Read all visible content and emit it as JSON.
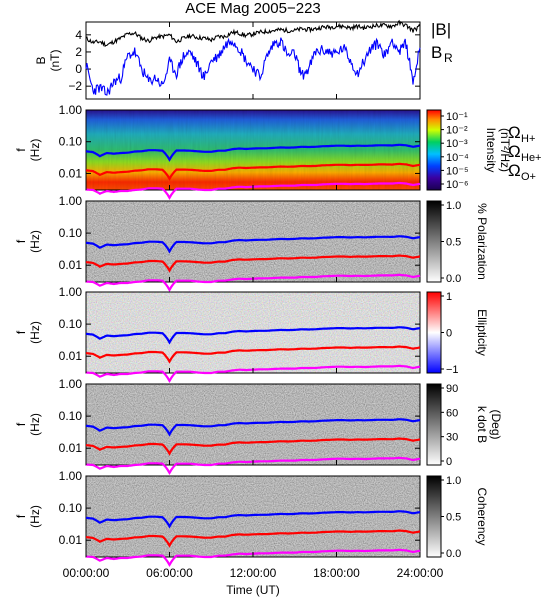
{
  "title": "ACE Mag 2005−223",
  "colors": {
    "babs": "#000000",
    "br": "#0000ff",
    "h": "#0000ff",
    "he": "#ff0000",
    "o": "#ff00ff"
  },
  "panels": {
    "b": {
      "ylabel_line1": "B",
      "ylabel_line2": "(nT)",
      "yticks": [
        "4",
        "2",
        "0",
        "−2"
      ],
      "legend_babs": "|B|",
      "legend_br": "B",
      "legend_br_sub": "R"
    },
    "freq": {
      "ylabel_line1": "f",
      "ylabel_line2": "(Hz)",
      "yticks": [
        "1.00",
        "0.10",
        "0.01"
      ]
    },
    "intensity": {
      "cb_line1": "Intensity",
      "cb_line2": "(nT²/Hz)",
      "cb_ticks": [
        "10⁻¹",
        "10⁻²",
        "10⁻³",
        "10⁻⁴",
        "10⁻⁵",
        "10⁻⁶"
      ]
    },
    "polarization": {
      "cb_label": "% Polarization",
      "cb_ticks": [
        "1.0",
        "0.5",
        "0.0"
      ]
    },
    "ellipticity": {
      "cb_label": "Ellipticity",
      "cb_ticks": [
        "1",
        "0",
        "−1"
      ]
    },
    "kdotb": {
      "cb_line1": "k dot B",
      "cb_line2": "(Deg)",
      "cb_ticks": [
        "90",
        "60",
        "30",
        "0"
      ]
    },
    "coherency": {
      "cb_label": "Coherency",
      "cb_ticks": [
        "1.0",
        "0.5",
        "0.0"
      ]
    }
  },
  "gyro_legend": [
    {
      "label": "Ω",
      "sub": "H+"
    },
    {
      "label": "Ω",
      "sub": "He+"
    },
    {
      "label": "Ω",
      "sub": "O+"
    }
  ],
  "x_axis": {
    "ticks": [
      "00:00:00",
      "06:00:00",
      "12:00:00",
      "18:00:00",
      "24:00:00"
    ],
    "label": "Time (UT)"
  },
  "chart_data": {
    "type": "line",
    "title": "ACE Mag 2005−223",
    "x_unit": "hours UT",
    "xlim": [
      0,
      24
    ],
    "b_panel": {
      "ylim": [
        -3.5,
        5.5
      ],
      "series": [
        {
          "name": "|B|",
          "x": [
            0,
            0.5,
            1,
            1.5,
            2,
            2.5,
            3,
            3.5,
            4,
            4.5,
            5,
            5.5,
            6,
            6.5,
            7,
            7.5,
            8,
            8.5,
            9,
            9.5,
            10,
            10.5,
            11,
            11.5,
            12,
            12.5,
            13,
            13.5,
            14,
            14.5,
            15,
            15.5,
            16,
            16.5,
            17,
            17.5,
            18,
            18.5,
            19,
            19.5,
            20,
            20.5,
            21,
            21.5,
            22,
            22.5,
            23,
            23.5,
            24
          ],
          "values": [
            3.6,
            3.1,
            3.2,
            2.8,
            3.2,
            3.6,
            4.1,
            4.2,
            3.6,
            3.3,
            3.7,
            3.8,
            4.0,
            3.2,
            3.6,
            3.9,
            3.7,
            3.6,
            3.4,
            3.8,
            3.8,
            4.3,
            4.2,
            3.9,
            4.1,
            4.3,
            4.4,
            4.5,
            4.6,
            4.5,
            4.5,
            4.7,
            4.6,
            4.7,
            4.9,
            4.9,
            5.0,
            5.0,
            4.8,
            5.0,
            4.8,
            5.0,
            5.1,
            5.1,
            5.0,
            5.4,
            5.1,
            4.5,
            5.0
          ]
        },
        {
          "name": "B",
          "x": [
            0,
            0.5,
            1,
            1.5,
            2,
            2.5,
            3,
            3.5,
            4,
            4.5,
            5,
            5.5,
            6,
            6.5,
            7,
            7.5,
            8,
            8.5,
            9,
            9.5,
            10,
            10.5,
            11,
            11.5,
            12,
            12.5,
            13,
            13.5,
            14,
            14.5,
            15,
            15.5,
            16,
            16.5,
            17,
            17.5,
            18,
            18.5,
            19,
            19.5,
            20,
            20.5,
            21,
            21.5,
            22,
            22.5,
            23,
            23.5,
            24
          ],
          "values": [
            0.5,
            -2.5,
            -2.2,
            -2.9,
            -1.5,
            -1.0,
            1.5,
            2.0,
            0.0,
            -1.5,
            -1.0,
            -2.0,
            0.8,
            -0.5,
            1.5,
            2.0,
            0.5,
            -1.0,
            1.0,
            1.5,
            2.8,
            3.5,
            2.5,
            1.0,
            0.2,
            -1.0,
            1.5,
            3.0,
            3.3,
            1.5,
            1.8,
            -0.8,
            0.0,
            2.0,
            2.2,
            2.0,
            1.8,
            2.5,
            1.0,
            -0.5,
            1.0,
            2.5,
            3.0,
            1.5,
            3.5,
            2.0,
            3.0,
            -1.5,
            2.5
          ]
        }
      ]
    },
    "spectrogram_panels": {
      "frequency_range_hz": [
        0.003,
        1.0
      ],
      "gyrofrequency_lines_hz": [
        {
          "name": "ΩH+",
          "x": [
            0,
            0.5,
            1,
            1.5,
            2,
            2.5,
            3,
            3.5,
            4,
            4.5,
            5,
            5.5,
            6,
            6.5,
            7,
            7.5,
            8,
            8.5,
            9,
            9.5,
            10,
            10.5,
            11,
            11.5,
            12,
            12.5,
            13,
            13.5,
            14,
            14.5,
            15,
            15.5,
            16,
            16.5,
            17,
            17.5,
            18,
            18.5,
            19,
            19.5,
            20,
            20.5,
            21,
            21.5,
            22,
            22.5,
            23,
            23.5,
            24
          ],
          "values": [
            0.05,
            0.047,
            0.035,
            0.044,
            0.042,
            0.044,
            0.045,
            0.049,
            0.05,
            0.054,
            0.054,
            0.052,
            0.027,
            0.053,
            0.053,
            0.052,
            0.05,
            0.048,
            0.048,
            0.052,
            0.052,
            0.058,
            0.061,
            0.059,
            0.061,
            0.062,
            0.062,
            0.064,
            0.066,
            0.065,
            0.066,
            0.069,
            0.068,
            0.069,
            0.072,
            0.073,
            0.075,
            0.075,
            0.073,
            0.075,
            0.074,
            0.075,
            0.077,
            0.077,
            0.076,
            0.08,
            0.077,
            0.069,
            0.075
          ]
        },
        {
          "name": "ΩHe+",
          "x": [
            0,
            0.5,
            1,
            1.5,
            2,
            2.5,
            3,
            3.5,
            4,
            4.5,
            5,
            5.5,
            6,
            6.5,
            7,
            7.5,
            8,
            8.5,
            9,
            9.5,
            10,
            10.5,
            11,
            11.5,
            12,
            12.5,
            13,
            13.5,
            14,
            14.5,
            15,
            15.5,
            16,
            16.5,
            17,
            17.5,
            18,
            18.5,
            19,
            19.5,
            20,
            20.5,
            21,
            21.5,
            22,
            22.5,
            23,
            23.5,
            24
          ],
          "values": [
            0.0125,
            0.0118,
            0.009,
            0.011,
            0.0105,
            0.011,
            0.0113,
            0.0122,
            0.0125,
            0.0135,
            0.0135,
            0.013,
            0.0068,
            0.0132,
            0.0132,
            0.013,
            0.0125,
            0.012,
            0.012,
            0.013,
            0.013,
            0.0145,
            0.0152,
            0.0148,
            0.0152,
            0.0155,
            0.0155,
            0.016,
            0.0165,
            0.0162,
            0.0165,
            0.0172,
            0.017,
            0.0172,
            0.018,
            0.0182,
            0.0187,
            0.0187,
            0.0182,
            0.0187,
            0.0185,
            0.0187,
            0.0192,
            0.0192,
            0.019,
            0.02,
            0.0192,
            0.0172,
            0.0187
          ]
        },
        {
          "name": "ΩO+",
          "x": [
            0,
            0.5,
            1,
            1.5,
            2,
            2.5,
            3,
            3.5,
            4,
            4.5,
            5,
            5.5,
            6,
            6.5,
            7,
            7.5,
            8,
            8.5,
            9,
            9.5,
            10,
            10.5,
            11,
            11.5,
            12,
            12.5,
            13,
            13.5,
            14,
            14.5,
            15,
            15.5,
            16,
            16.5,
            17,
            17.5,
            18,
            18.5,
            19,
            19.5,
            20,
            20.5,
            21,
            21.5,
            22,
            22.5,
            23,
            23.5,
            24
          ],
          "values": [
            0.0031,
            0.003,
            0.0023,
            0.0028,
            0.0026,
            0.0028,
            0.0028,
            0.003,
            0.0031,
            0.0034,
            0.0034,
            0.0033,
            0.0017,
            0.0033,
            0.0033,
            0.0033,
            0.0031,
            0.003,
            0.003,
            0.0033,
            0.0033,
            0.0036,
            0.0038,
            0.0037,
            0.0038,
            0.0039,
            0.0039,
            0.004,
            0.0041,
            0.0041,
            0.0041,
            0.0043,
            0.0043,
            0.0043,
            0.0045,
            0.0046,
            0.0047,
            0.0047,
            0.0046,
            0.0047,
            0.0046,
            0.0047,
            0.0048,
            0.0048,
            0.0048,
            0.005,
            0.0048,
            0.0043,
            0.0047
          ]
        }
      ],
      "colorbar_ranges": {
        "intensity_nT2_per_Hz": [
          1e-06,
          0.1
        ],
        "polarization": [
          0,
          1
        ],
        "ellipticity": [
          -1,
          1
        ],
        "k_dot_B_deg": [
          0,
          90
        ],
        "coherency": [
          0,
          1
        ]
      }
    }
  }
}
